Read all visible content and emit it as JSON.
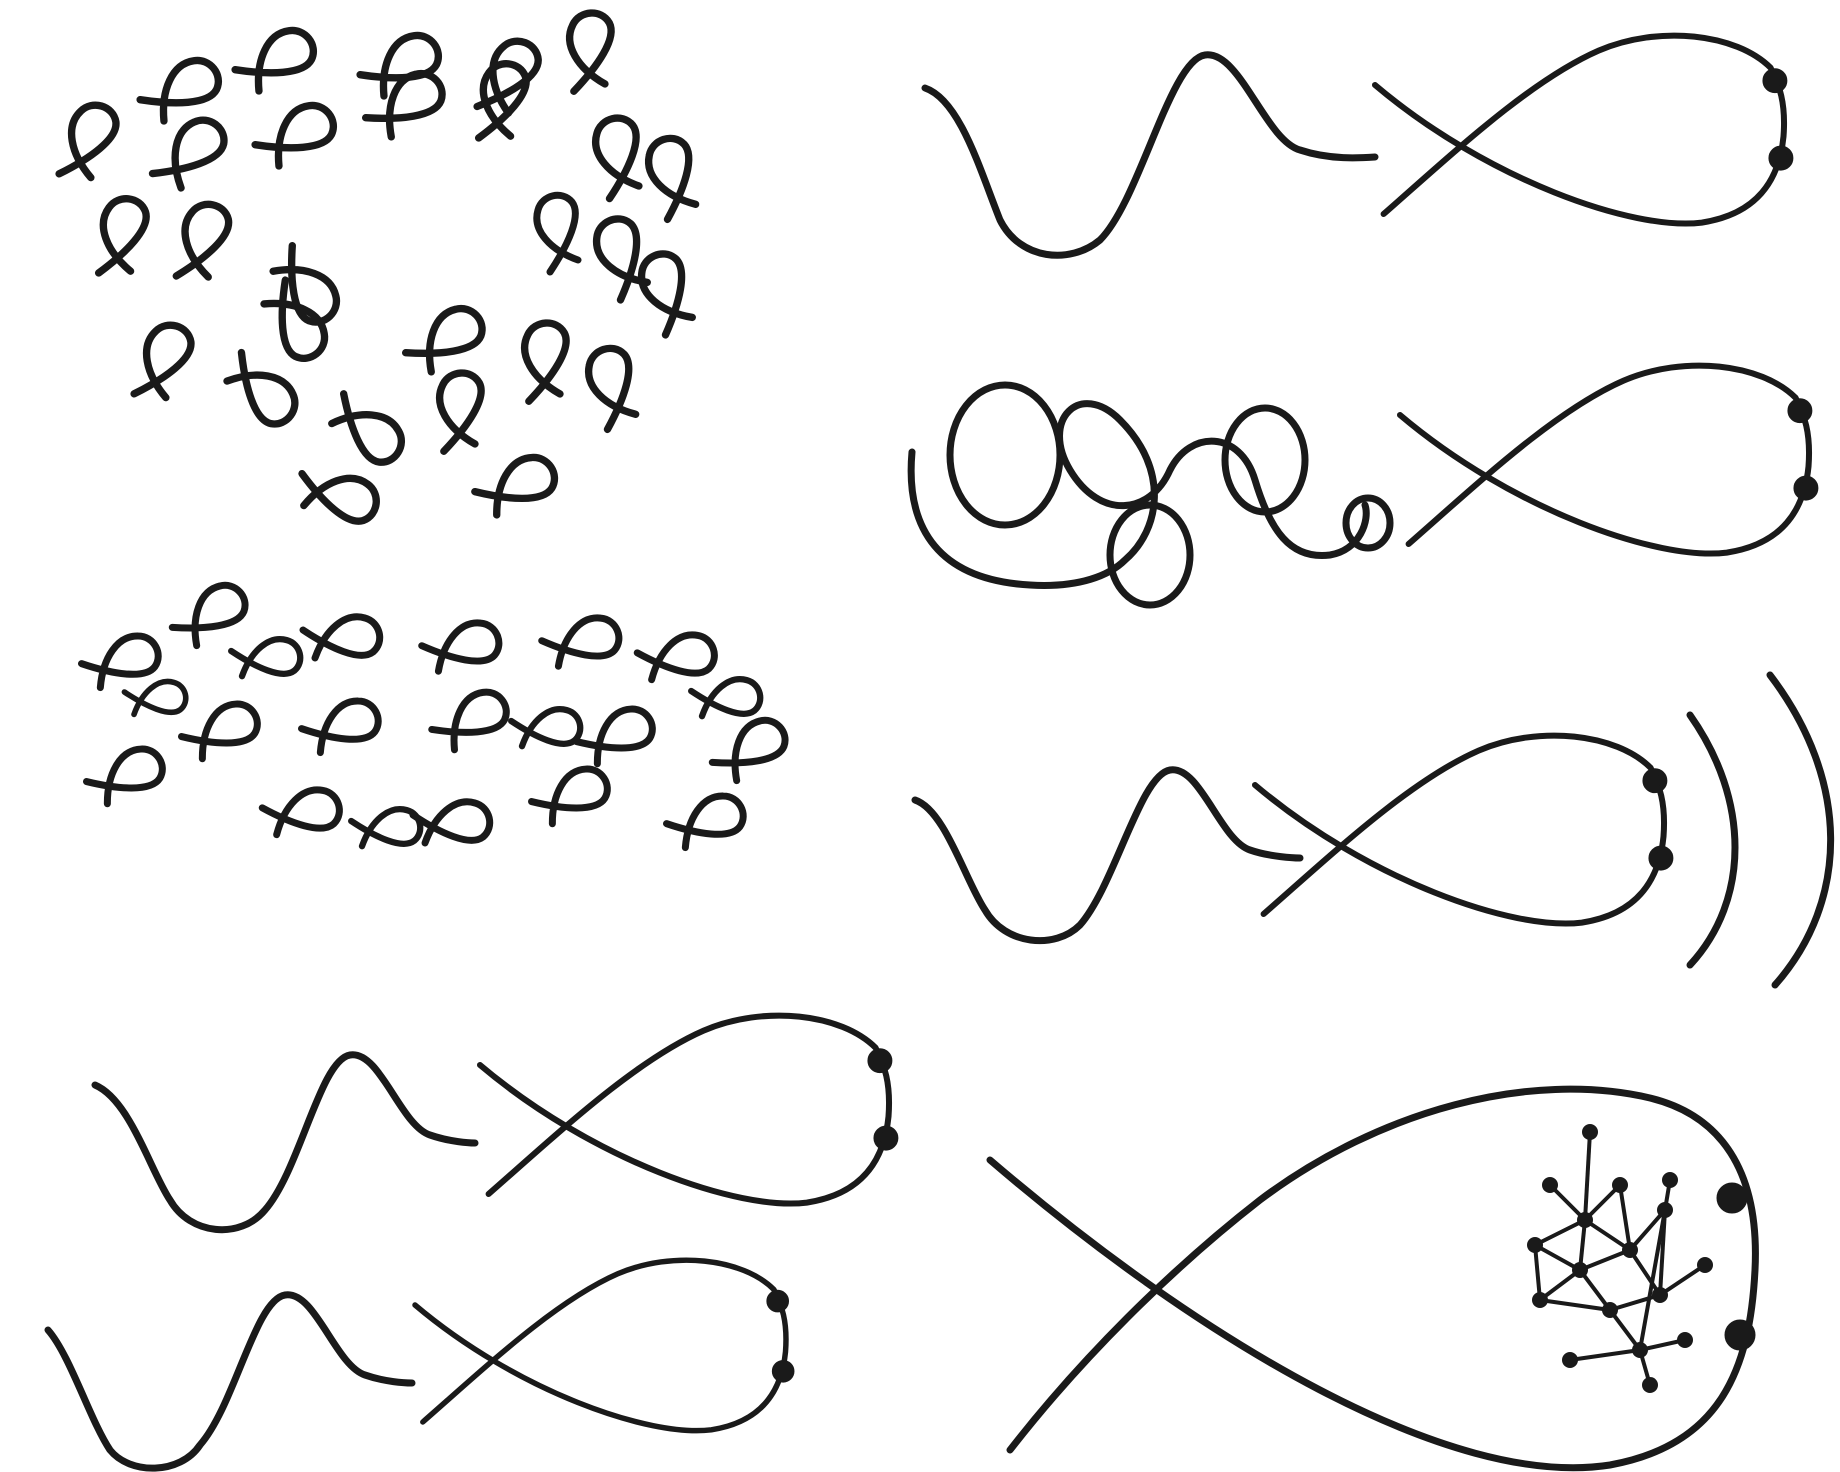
{
  "style": {
    "background": "#ffffff",
    "ink": "#1a1a1a"
  },
  "groups": [
    {
      "name": "fish-school-ring",
      "kind": "school",
      "fish_count": 28
    },
    {
      "name": "fish-school-grid",
      "kind": "school",
      "fish_count": 21
    },
    {
      "name": "fish-with-wavy-tail",
      "kind": "fish-with-trail",
      "trail": "wave"
    },
    {
      "name": "fish-with-loopy-tail",
      "kind": "fish-with-trail",
      "trail": "loops"
    },
    {
      "name": "fish-with-sound-waves",
      "kind": "fish-with-trail",
      "trail": "wave",
      "extras": "sound-arcs"
    },
    {
      "name": "fish-pair-left",
      "kind": "fish-with-trail",
      "trail": "wave",
      "fish_count": 2
    },
    {
      "name": "fish-with-network",
      "kind": "fish",
      "extras": "network-graph"
    }
  ]
}
